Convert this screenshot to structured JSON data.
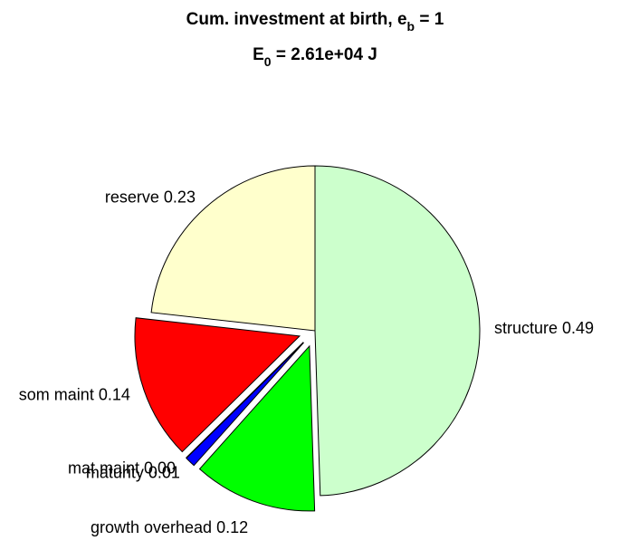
{
  "chart_data": {
    "type": "pie",
    "title": [
      "Cum. investment at birth, e",
      "b",
      " = 1"
    ],
    "subtitle": [
      "E",
      "0",
      " = 2.61e+04 J"
    ],
    "categories": [
      "reserve",
      "som maint",
      "mat maint",
      "maturity",
      "growth overhead",
      "structure"
    ],
    "values": [
      0.23,
      0.14,
      0.0,
      0.01,
      0.12,
      0.49
    ],
    "value_labels": [
      "0.23",
      "0.14",
      "0.00",
      "0.01",
      "0.12",
      "0.49"
    ],
    "colors": [
      "#ffffcc",
      "#ff0000",
      "#ff00ff",
      "#0000ff",
      "#00ff00",
      "#ccffcc"
    ],
    "explode": [
      false,
      true,
      true,
      true,
      true,
      false
    ],
    "start_angle": 90,
    "direction": "counterclockwise"
  }
}
